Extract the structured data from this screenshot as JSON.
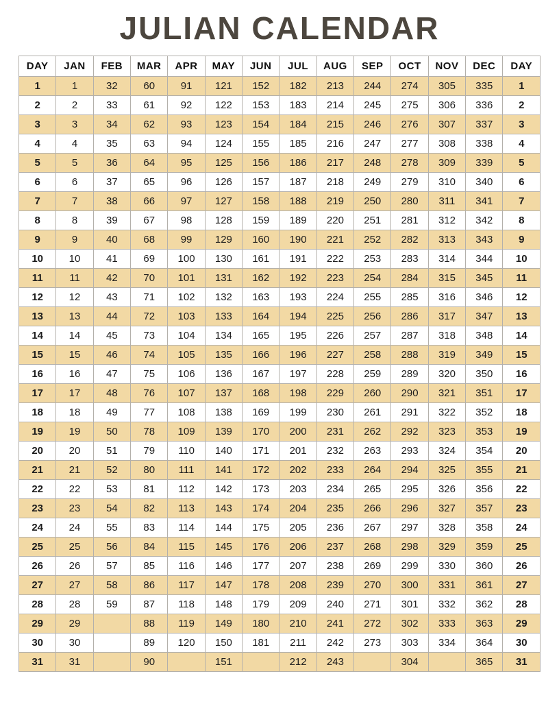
{
  "page": {
    "title": "JULIAN CALENDAR"
  },
  "colors": {
    "row_highlight": "#f2d9a4",
    "row_plain": "#ffffff",
    "border": "#b3b0ab",
    "title": "#4c463e",
    "text": "#1c1c1c"
  },
  "table": {
    "headers": [
      "DAY",
      "JAN",
      "FEB",
      "MAR",
      "APR",
      "MAY",
      "JUN",
      "JUL",
      "AUG",
      "SEP",
      "OCT",
      "NOV",
      "DEC",
      "DAY"
    ],
    "rows": [
      [
        "1",
        "1",
        "32",
        "60",
        "91",
        "121",
        "152",
        "182",
        "213",
        "244",
        "274",
        "305",
        "335",
        "1"
      ],
      [
        "2",
        "2",
        "33",
        "61",
        "92",
        "122",
        "153",
        "183",
        "214",
        "245",
        "275",
        "306",
        "336",
        "2"
      ],
      [
        "3",
        "3",
        "34",
        "62",
        "93",
        "123",
        "154",
        "184",
        "215",
        "246",
        "276",
        "307",
        "337",
        "3"
      ],
      [
        "4",
        "4",
        "35",
        "63",
        "94",
        "124",
        "155",
        "185",
        "216",
        "247",
        "277",
        "308",
        "338",
        "4"
      ],
      [
        "5",
        "5",
        "36",
        "64",
        "95",
        "125",
        "156",
        "186",
        "217",
        "248",
        "278",
        "309",
        "339",
        "5"
      ],
      [
        "6",
        "6",
        "37",
        "65",
        "96",
        "126",
        "157",
        "187",
        "218",
        "249",
        "279",
        "310",
        "340",
        "6"
      ],
      [
        "7",
        "7",
        "38",
        "66",
        "97",
        "127",
        "158",
        "188",
        "219",
        "250",
        "280",
        "311",
        "341",
        "7"
      ],
      [
        "8",
        "8",
        "39",
        "67",
        "98",
        "128",
        "159",
        "189",
        "220",
        "251",
        "281",
        "312",
        "342",
        "8"
      ],
      [
        "9",
        "9",
        "40",
        "68",
        "99",
        "129",
        "160",
        "190",
        "221",
        "252",
        "282",
        "313",
        "343",
        "9"
      ],
      [
        "10",
        "10",
        "41",
        "69",
        "100",
        "130",
        "161",
        "191",
        "222",
        "253",
        "283",
        "314",
        "344",
        "10"
      ],
      [
        "11",
        "11",
        "42",
        "70",
        "101",
        "131",
        "162",
        "192",
        "223",
        "254",
        "284",
        "315",
        "345",
        "11"
      ],
      [
        "12",
        "12",
        "43",
        "71",
        "102",
        "132",
        "163",
        "193",
        "224",
        "255",
        "285",
        "316",
        "346",
        "12"
      ],
      [
        "13",
        "13",
        "44",
        "72",
        "103",
        "133",
        "164",
        "194",
        "225",
        "256",
        "286",
        "317",
        "347",
        "13"
      ],
      [
        "14",
        "14",
        "45",
        "73",
        "104",
        "134",
        "165",
        "195",
        "226",
        "257",
        "287",
        "318",
        "348",
        "14"
      ],
      [
        "15",
        "15",
        "46",
        "74",
        "105",
        "135",
        "166",
        "196",
        "227",
        "258",
        "288",
        "319",
        "349",
        "15"
      ],
      [
        "16",
        "16",
        "47",
        "75",
        "106",
        "136",
        "167",
        "197",
        "228",
        "259",
        "289",
        "320",
        "350",
        "16"
      ],
      [
        "17",
        "17",
        "48",
        "76",
        "107",
        "137",
        "168",
        "198",
        "229",
        "260",
        "290",
        "321",
        "351",
        "17"
      ],
      [
        "18",
        "18",
        "49",
        "77",
        "108",
        "138",
        "169",
        "199",
        "230",
        "261",
        "291",
        "322",
        "352",
        "18"
      ],
      [
        "19",
        "19",
        "50",
        "78",
        "109",
        "139",
        "170",
        "200",
        "231",
        "262",
        "292",
        "323",
        "353",
        "19"
      ],
      [
        "20",
        "20",
        "51",
        "79",
        "110",
        "140",
        "171",
        "201",
        "232",
        "263",
        "293",
        "324",
        "354",
        "20"
      ],
      [
        "21",
        "21",
        "52",
        "80",
        "111",
        "141",
        "172",
        "202",
        "233",
        "264",
        "294",
        "325",
        "355",
        "21"
      ],
      [
        "22",
        "22",
        "53",
        "81",
        "112",
        "142",
        "173",
        "203",
        "234",
        "265",
        "295",
        "326",
        "356",
        "22"
      ],
      [
        "23",
        "23",
        "54",
        "82",
        "113",
        "143",
        "174",
        "204",
        "235",
        "266",
        "296",
        "327",
        "357",
        "23"
      ],
      [
        "24",
        "24",
        "55",
        "83",
        "114",
        "144",
        "175",
        "205",
        "236",
        "267",
        "297",
        "328",
        "358",
        "24"
      ],
      [
        "25",
        "25",
        "56",
        "84",
        "115",
        "145",
        "176",
        "206",
        "237",
        "268",
        "298",
        "329",
        "359",
        "25"
      ],
      [
        "26",
        "26",
        "57",
        "85",
        "116",
        "146",
        "177",
        "207",
        "238",
        "269",
        "299",
        "330",
        "360",
        "26"
      ],
      [
        "27",
        "27",
        "58",
        "86",
        "117",
        "147",
        "178",
        "208",
        "239",
        "270",
        "300",
        "331",
        "361",
        "27"
      ],
      [
        "28",
        "28",
        "59",
        "87",
        "118",
        "148",
        "179",
        "209",
        "240",
        "271",
        "301",
        "332",
        "362",
        "28"
      ],
      [
        "29",
        "29",
        "",
        "88",
        "119",
        "149",
        "180",
        "210",
        "241",
        "272",
        "302",
        "333",
        "363",
        "29"
      ],
      [
        "30",
        "30",
        "",
        "89",
        "120",
        "150",
        "181",
        "211",
        "242",
        "273",
        "303",
        "334",
        "364",
        "30"
      ],
      [
        "31",
        "31",
        "",
        "90",
        "",
        "151",
        "",
        "212",
        "243",
        "",
        "304",
        "",
        "365",
        "31"
      ]
    ]
  }
}
